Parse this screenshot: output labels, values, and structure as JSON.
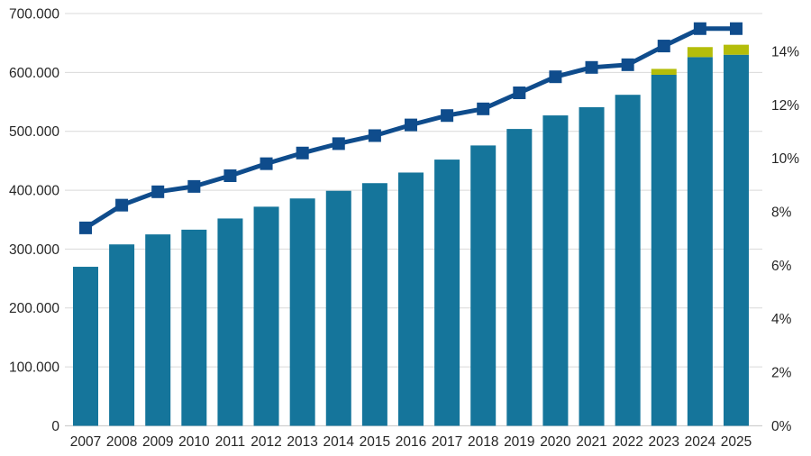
{
  "chart_data": {
    "type": "combo-bar-line",
    "title": "",
    "legend": null,
    "grid": true,
    "background": "#ffffff",
    "gridline_color": "#d9d9d9",
    "axis_line_color": "#d0d0d0",
    "text_color": "#262626",
    "categories": [
      "2007",
      "2008",
      "2009",
      "2010",
      "2011",
      "2012",
      "2013",
      "2014",
      "2015",
      "2016",
      "2017",
      "2018",
      "2019",
      "2020",
      "2021",
      "2022",
      "2023",
      "2024",
      "2025"
    ],
    "series": [
      {
        "name": "main-bar-series",
        "type": "bar",
        "axis": "left",
        "color": "#15759b",
        "values": [
          270000,
          308000,
          325000,
          333000,
          352000,
          372000,
          386000,
          399000,
          412000,
          430000,
          452000,
          476000,
          504000,
          527000,
          541000,
          562000,
          596000,
          626000,
          630000
        ]
      },
      {
        "name": "stacked-cap-bar-series",
        "type": "bar-stacked",
        "axis": "left",
        "color": "#b4bd0a",
        "values": [
          0,
          0,
          0,
          0,
          0,
          0,
          0,
          0,
          0,
          0,
          0,
          0,
          0,
          0,
          0,
          0,
          10000,
          17000,
          17000
        ]
      },
      {
        "name": "percent-line-series",
        "type": "line",
        "axis": "right",
        "color": "#0f4c8c",
        "marker": "square",
        "values": [
          7.4,
          8.25,
          8.75,
          8.95,
          9.35,
          9.8,
          10.2,
          10.55,
          10.85,
          11.25,
          11.6,
          11.85,
          12.45,
          13.05,
          13.4,
          13.5,
          14.2,
          14.85,
          14.85
        ]
      }
    ],
    "left_axis": {
      "min": 0,
      "max": 700000,
      "tick_step": 100000,
      "tick_labels": [
        "0",
        "100.000",
        "200.000",
        "300.000",
        "400.000",
        "500.000",
        "600.000",
        "700.000"
      ]
    },
    "right_axis": {
      "min": 0,
      "max_labeled": 14,
      "tick_step": 2,
      "tick_labels": [
        "0%",
        "2%",
        "4%",
        "6%",
        "8%",
        "10%",
        "12%",
        "14%"
      ]
    }
  }
}
